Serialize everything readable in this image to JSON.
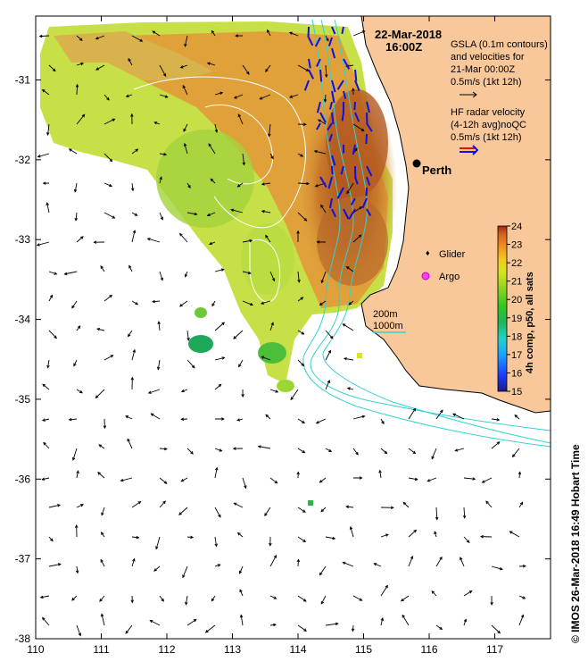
{
  "map": {
    "date": "22-Mar-2018",
    "time": "16:00Z",
    "city": "Perth",
    "lon_ticks": [
      "110",
      "111",
      "112",
      "113",
      "114",
      "115",
      "116",
      "117"
    ],
    "lat_ticks": [
      "-31",
      "-32",
      "-33",
      "-34",
      "-35",
      "-36",
      "-37",
      "-38"
    ],
    "lon_range": [
      110,
      117.85
    ],
    "lat_range": [
      -38,
      -30.2
    ],
    "colors": {
      "land": "#f8c89a",
      "coast": "#000000",
      "isobath": "#33d1d1",
      "gsla": "#ffffff",
      "radar_arrow": "#1010e0"
    }
  },
  "legend": {
    "gsla_line1": "GSLA (0.1m contours)",
    "gsla_line2": "and velocities for",
    "gsla_line3": "21-Mar 00:00Z",
    "gsla_line4": "0.5m/s (1kt 12h)",
    "hf_line1": "HF radar velocity",
    "hf_line2": "(4-12h avg)noQC",
    "hf_line3": "0.5m/s (1kt 12h)",
    "glider": "Glider",
    "argo": "Argo",
    "isobath_200": "200m",
    "isobath_1000": "1000m"
  },
  "colorbar": {
    "label": "4h comp, p50, all sats",
    "ticks": [
      "24",
      "23",
      "22",
      "21",
      "20",
      "19",
      "18",
      "17",
      "16",
      "15"
    ],
    "range": [
      15,
      24
    ],
    "colors": [
      "#1a1a8c",
      "#1e3cff",
      "#1ea0ff",
      "#22d4c8",
      "#1fb35a",
      "#34c81e",
      "#8fd21e",
      "#d6e61e",
      "#f4c81e",
      "#f08c1e",
      "#d2641e",
      "#a02814"
    ]
  },
  "credit": "© IMOS 26-Mar-2018 16:49 Hobart Time"
}
